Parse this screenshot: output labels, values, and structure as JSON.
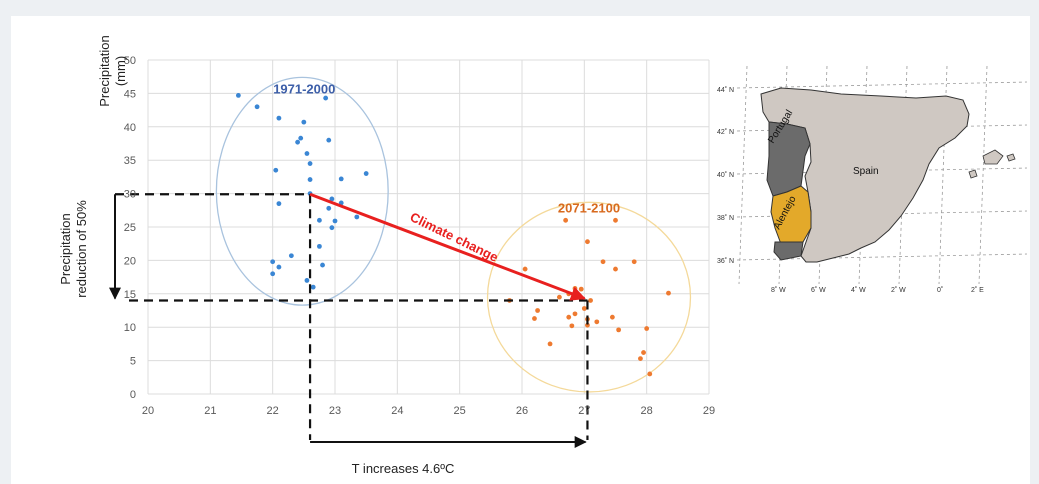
{
  "chart_data": {
    "type": "scatter",
    "xlim": [
      20,
      29
    ],
    "ylim": [
      0,
      50
    ],
    "xticks": [
      "20",
      "21",
      "22",
      "23",
      "24",
      "25",
      "26",
      "27",
      "28",
      "29"
    ],
    "yticks": [
      "0",
      "5",
      "10",
      "15",
      "20",
      "25",
      "30",
      "35",
      "40",
      "45",
      "50"
    ],
    "ylabel_line1": "Precipitation",
    "ylabel_line2": "(mm)",
    "grid": true,
    "series": [
      {
        "name": "1971-2000",
        "color": "#3a86d4",
        "label_color": "#3c5ea8",
        "ellipse_color": "#a9c3de",
        "points": [
          [
            21.45,
            44.7
          ],
          [
            21.75,
            43.0
          ],
          [
            22.1,
            41.3
          ],
          [
            22.5,
            40.7
          ],
          [
            22.85,
            44.3
          ],
          [
            22.45,
            38.3
          ],
          [
            22.4,
            37.7
          ],
          [
            22.9,
            38.0
          ],
          [
            22.55,
            36.0
          ],
          [
            22.6,
            34.5
          ],
          [
            22.05,
            33.5
          ],
          [
            23.5,
            33.0
          ],
          [
            23.1,
            32.2
          ],
          [
            22.6,
            32.1
          ],
          [
            22.6,
            30.0
          ],
          [
            22.1,
            28.5
          ],
          [
            22.95,
            29.2
          ],
          [
            23.1,
            28.6
          ],
          [
            22.9,
            27.8
          ],
          [
            23.35,
            26.5
          ],
          [
            22.75,
            26.0
          ],
          [
            23.0,
            25.9
          ],
          [
            22.95,
            24.9
          ],
          [
            22.75,
            22.1
          ],
          [
            22.3,
            20.7
          ],
          [
            22.0,
            19.8
          ],
          [
            22.1,
            19.0
          ],
          [
            22.8,
            19.3
          ],
          [
            22.0,
            18.0
          ],
          [
            22.55,
            17.0
          ],
          [
            22.65,
            16.0
          ]
        ]
      },
      {
        "name": "2071-2100",
        "color": "#ee7a30",
        "label_color": "#d86a1e",
        "ellipse_color": "#f4d99a",
        "points": [
          [
            26.7,
            26.0
          ],
          [
            27.5,
            26.0
          ],
          [
            27.05,
            22.8
          ],
          [
            26.05,
            18.7
          ],
          [
            27.3,
            19.8
          ],
          [
            27.8,
            19.8
          ],
          [
            27.5,
            18.7
          ],
          [
            25.8,
            14.0
          ],
          [
            26.85,
            15.8
          ],
          [
            26.95,
            15.7
          ],
          [
            26.75,
            15.0
          ],
          [
            26.6,
            14.5
          ],
          [
            27.1,
            14.0
          ],
          [
            28.35,
            15.1
          ],
          [
            26.25,
            12.5
          ],
          [
            26.2,
            11.3
          ],
          [
            26.75,
            11.5
          ],
          [
            26.85,
            12.0
          ],
          [
            27.0,
            12.8
          ],
          [
            27.05,
            11.2
          ],
          [
            27.2,
            10.8
          ],
          [
            27.45,
            11.5
          ],
          [
            26.8,
            10.2
          ],
          [
            27.05,
            10.3
          ],
          [
            27.55,
            9.6
          ],
          [
            28.0,
            9.8
          ],
          [
            26.45,
            7.5
          ],
          [
            27.95,
            6.2
          ],
          [
            27.9,
            5.3
          ],
          [
            28.05,
            3.0
          ]
        ]
      }
    ],
    "annotations": {
      "climate_change": "Climate change",
      "temp_increase": "T increases 4.6ºC",
      "precip_line1": "Precipitation",
      "precip_line2": "reduction of 50%",
      "start_point": [
        22.6,
        29.9
      ],
      "end_point": [
        27.05,
        14.0
      ]
    },
    "colors": {
      "arrow": "#e8201f",
      "dashed": "#111111",
      "grid": "#dcdcdc",
      "tick_text": "#595959"
    }
  },
  "map": {
    "lat_labels": [
      "44˚ N",
      "42˚ N",
      "40˚ N",
      "38˚ N",
      "36˚ N"
    ],
    "lon_labels": [
      "8˚ W",
      "6˚ W",
      "4˚ W",
      "2˚ W",
      "0˚",
      "2˚ E"
    ],
    "region_portugal": "Portugal",
    "region_alentejo": "Alentejo",
    "region_spain": "Spain",
    "colors": {
      "spain": "#cfc8c2",
      "portugal": "#6b6b6b",
      "alentejo": "#e3a92a",
      "border": "#333333"
    }
  }
}
